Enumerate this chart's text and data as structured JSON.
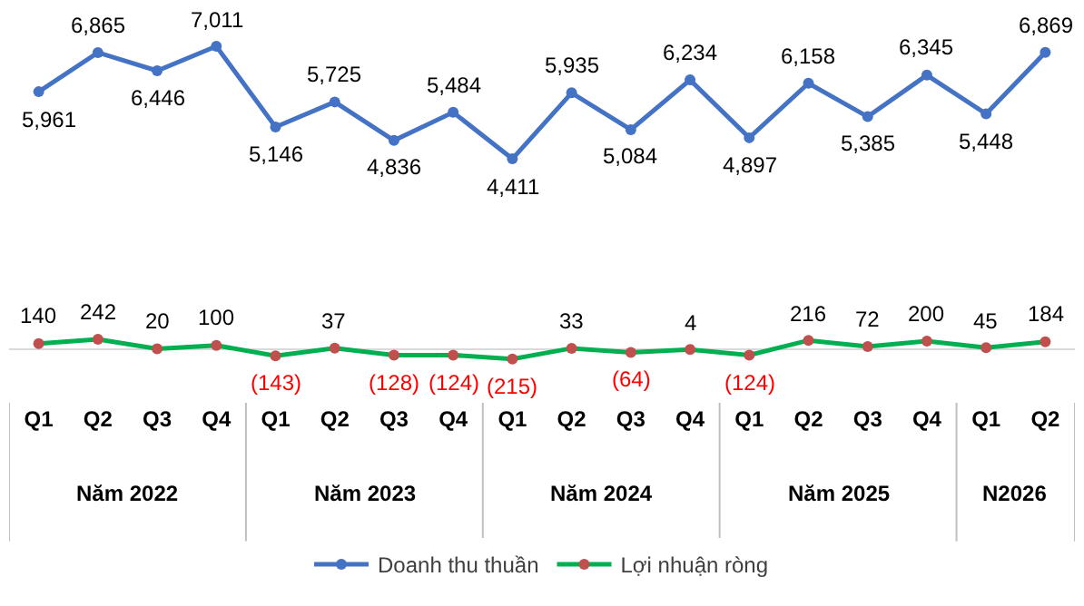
{
  "chart_data": {
    "type": "line",
    "categories": [
      "Q1",
      "Q2",
      "Q3",
      "Q4",
      "Q1",
      "Q2",
      "Q3",
      "Q4",
      "Q1",
      "Q2",
      "Q3",
      "Q4",
      "Q1",
      "Q2",
      "Q3",
      "Q4",
      "Q1",
      "Q2"
    ],
    "annotations": [
      "Năm 2022",
      "Năm 2023",
      "Năm 2024",
      "Năm 2025",
      "N2026"
    ],
    "series": [
      {
        "name": "Doanh thu thuần",
        "color": "#4472c4",
        "values": [
          5961,
          6865,
          6446,
          7011,
          5146,
          5725,
          4836,
          5484,
          4411,
          5935,
          5084,
          6234,
          4897,
          6158,
          5385,
          6345,
          5448,
          6869
        ],
        "value_labels": [
          "5,961",
          "6,865",
          "6,446",
          "7,011",
          "5,146",
          "5,725",
          "4,836",
          "5,484",
          "4,411",
          "5,935",
          "5,084",
          "6,234",
          "4,897",
          "6,158",
          "5,385",
          "6,345",
          "5,448",
          "6,869"
        ]
      },
      {
        "name": "Lợi nhuận ròng",
        "color": "#00b050",
        "colors": [
          "#c0504d",
          "#c0504d",
          "#c0504d",
          "#c0504d",
          "#c0504d",
          "#c0504d",
          "#c0504d",
          "#c0504d",
          "#c0504d",
          "#c0504d",
          "#c0504d",
          "#c0504d",
          "#c0504d",
          "#c0504d",
          "#c0504d",
          "#c0504d",
          "#c0504d",
          "#c0504d"
        ],
        "values": [
          140,
          242,
          20,
          100,
          -143,
          37,
          -128,
          -124,
          -215,
          33,
          -64,
          4,
          -124,
          216,
          72,
          200,
          45,
          184
        ],
        "value_labels": [
          "140",
          "242",
          "20",
          "100",
          "(143)",
          "37",
          "(128)",
          "(124)",
          "(215)",
          "33",
          "(64)",
          "4",
          "(124)",
          "216",
          "72",
          "200",
          "45",
          "184"
        ]
      }
    ],
    "tick_labels": "x",
    "legend": "bottom",
    "marker": "circle",
    "line_style": "solid"
  }
}
